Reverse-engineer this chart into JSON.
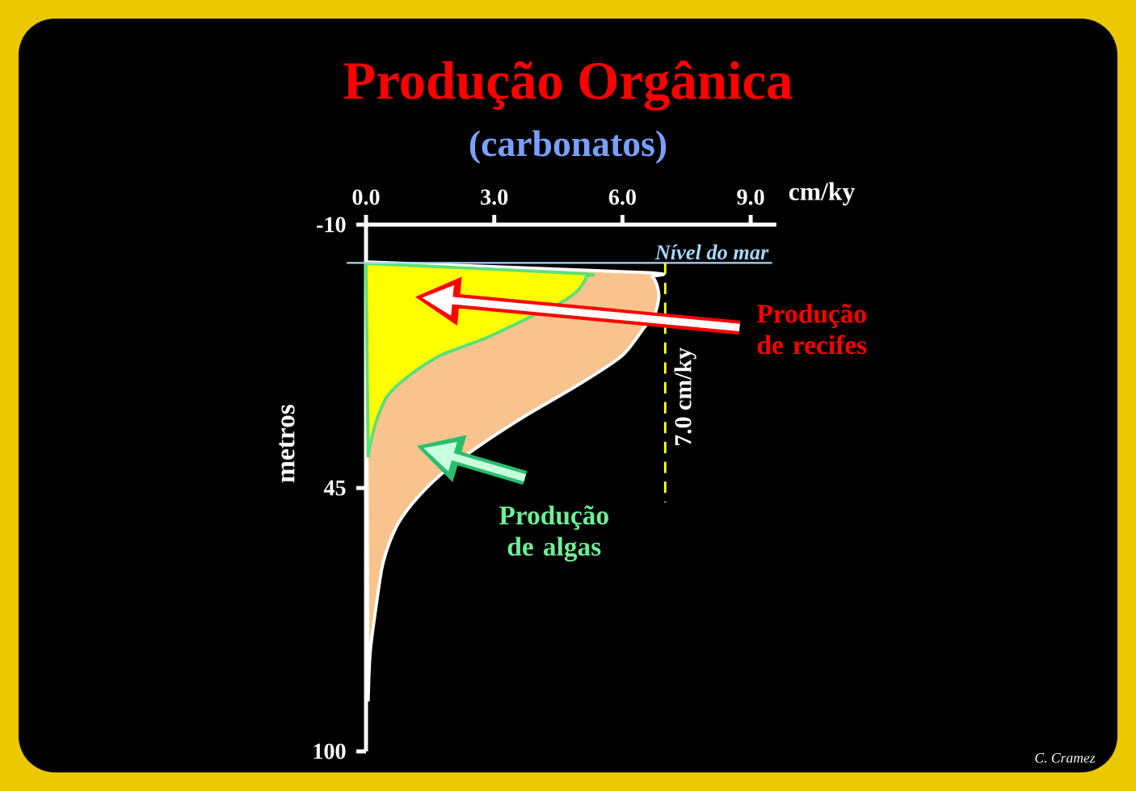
{
  "chart_data": {
    "type": "area",
    "title": "Produção Orgânica",
    "subtitle": "(carbonatos)",
    "xlabel": "cm/ky",
    "ylabel": "metros",
    "orientation": "horizontal",
    "legend": false,
    "series": [
      {
        "name": "Produção de recifes",
        "color": "#f9c38d",
        "x": [
          -2.2,
          0,
          0.9,
          2.4,
          5.2,
          8.8,
          11.6,
          17.3,
          23,
          30.1,
          36.5,
          42.2,
          48.1,
          53.3,
          60.6,
          68.9,
          79.2,
          89.6
        ],
        "values": [
          0,
          6.5,
          6.7,
          6.8,
          6.85,
          6.75,
          6.5,
          6.0,
          5.05,
          3.7,
          2.6,
          1.75,
          1.1,
          0.7,
          0.4,
          0.25,
          0.1,
          0.05
        ]
      },
      {
        "name": "Produção de algas",
        "color": "#ffff00",
        "x": [
          -1.9,
          0.2,
          0.9,
          3.8,
          6.6,
          9.5,
          13.7,
          17.3,
          21.6,
          25.8,
          30.8,
          35.8,
          38.6
        ],
        "values": [
          0,
          4.95,
          5.15,
          4.95,
          4.5,
          3.8,
          2.8,
          1.75,
          1.0,
          0.5,
          0.25,
          0.1,
          0.05
        ]
      }
    ],
    "xlim": [
      0,
      9.6
    ],
    "xticks": [
      {
        "value": 0,
        "label": "0.0"
      },
      {
        "value": 3,
        "label": "3.0"
      },
      {
        "value": 6,
        "label": "6.0"
      },
      {
        "value": 9,
        "label": "9.0"
      }
    ],
    "ylim": [
      100,
      -10
    ],
    "yticks": [
      -10,
      45,
      100
    ],
    "ref_lines": [
      {
        "axis": "y",
        "value": -2,
        "label": "Nível do mar",
        "color": "#a8d8ff",
        "line_style": "solid"
      },
      {
        "axis": "x",
        "value": 7.0,
        "label": "7.0 cm/ky",
        "color": "#ffff33",
        "line_style": "dashed"
      }
    ],
    "annotations": [
      "C. Cramez"
    ]
  }
}
